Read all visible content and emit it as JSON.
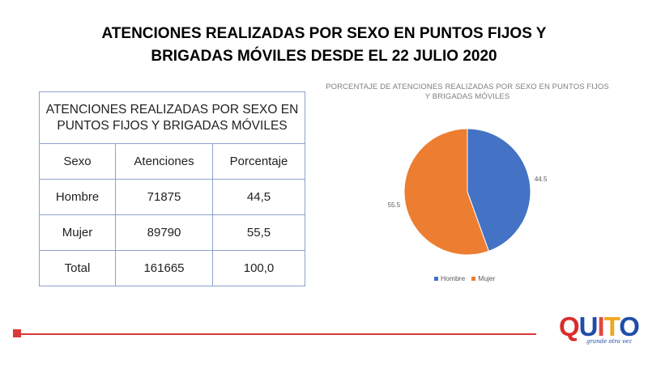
{
  "slide": {
    "title_line1": "ATENCIONES REALIZADAS POR SEXO EN PUNTOS FIJOS Y",
    "title_line2": "BRIGADAS MÓVILES DESDE EL 22 JULIO 2020"
  },
  "table": {
    "caption": "ATENCIONES REALIZADAS POR SEXO EN PUNTOS FIJOS Y BRIGADAS MÓVILES",
    "headers": [
      "Sexo",
      "Atenciones",
      "Porcentaje"
    ],
    "rows": [
      [
        "Hombre",
        "71875",
        "44,5"
      ],
      [
        "Mujer",
        "89790",
        "55,5"
      ],
      [
        "Total",
        "161665",
        "100,0"
      ]
    ]
  },
  "chart_data": {
    "type": "pie",
    "title": "PORCENTAJE DE ATENCIONES REALIZADAS POR SEXO EN PUNTOS FIJOS Y BRIGADAS MÓVILES",
    "categories": [
      "Hombre",
      "Mujer"
    ],
    "values": [
      44.5,
      55.5
    ],
    "data_labels": [
      "44.5",
      "55.5"
    ],
    "colors": [
      "#4472c4",
      "#ed7d31"
    ],
    "legend_position": "bottom"
  },
  "logo": {
    "letters": [
      "Q",
      "U",
      "I",
      "T",
      "O"
    ],
    "tagline": "grande otra vez",
    "colors": [
      "#d92c2c",
      "#1f4da8",
      "#e8453c",
      "#f2a51f",
      "#1f4da8"
    ]
  },
  "footer": {
    "accent_color": "#d93a3a"
  }
}
